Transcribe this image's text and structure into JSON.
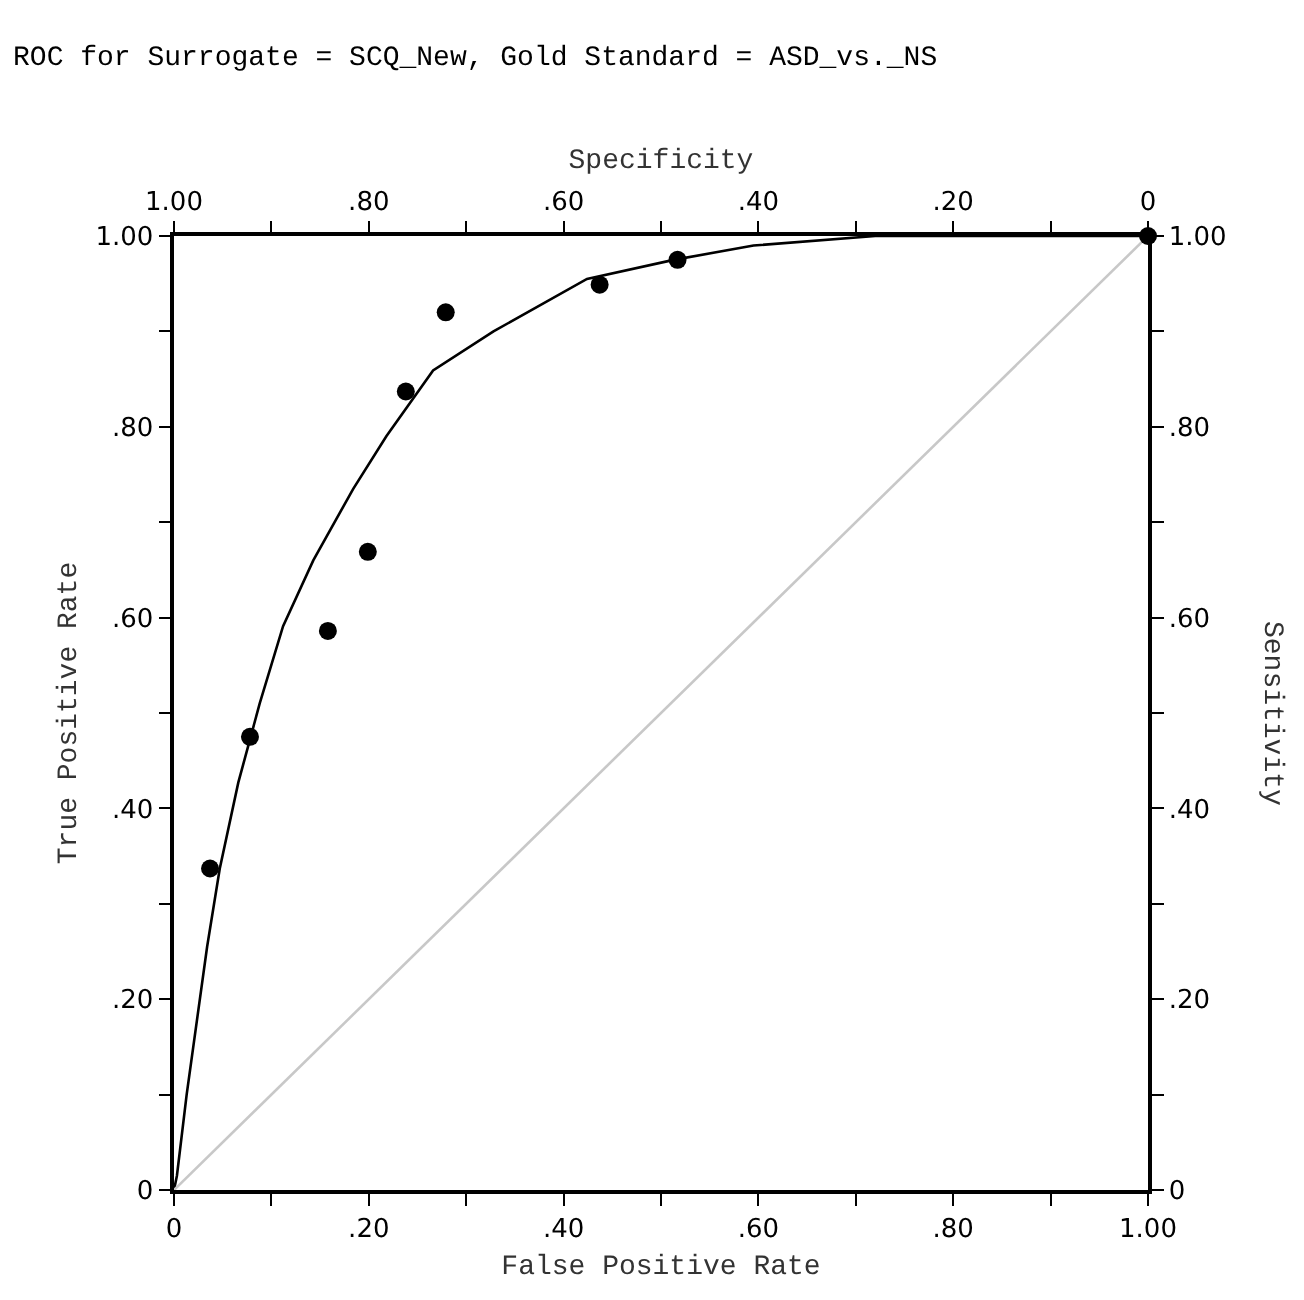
{
  "chart_data": {
    "type": "scatter",
    "title": "ROC for Surrogate = SCQ_New, Gold Standard = ASD_vs._NS",
    "xlabel": "False Positive Rate",
    "ylabel": "True Positive Rate",
    "x2label": "Specificity",
    "y2label": "Sensitivity",
    "series": [
      {
        "color": "#000000",
        "marker": "circle",
        "x": [
          0.037,
          0.078,
          0.158,
          0.199,
          0.238,
          0.279,
          0.437,
          0.517,
          1.0
        ],
        "values": [
          0.337,
          0.475,
          0.586,
          0.669,
          0.837,
          0.92,
          0.949,
          0.975,
          1.0
        ]
      },
      {
        "type": "line",
        "color": "#000000",
        "line_style": "solid",
        "x": [
          0.0,
          0.003,
          0.013,
          0.034,
          0.047,
          0.066,
          0.088,
          0.112,
          0.143,
          0.184,
          0.218,
          0.266,
          0.328,
          0.424,
          0.513,
          0.595,
          0.72,
          1.0
        ],
        "values": [
          0.0,
          0.015,
          0.1,
          0.255,
          0.337,
          0.427,
          0.51,
          0.591,
          0.66,
          0.735,
          0.79,
          0.859,
          0.9,
          0.955,
          0.975,
          0.99,
          1.0,
          1.0
        ]
      },
      {
        "type": "line",
        "color": "#c8c8c8",
        "line_style": "solid",
        "x": [
          0.0,
          1.0
        ],
        "values": [
          0.0,
          1.0
        ]
      }
    ],
    "xlim": [
      0,
      1
    ],
    "ylim": [
      0,
      1
    ],
    "x2lim": [
      1,
      0
    ],
    "y2lim": [
      0,
      1
    ],
    "xticks": [
      {
        "value": 0,
        "label": "0"
      },
      {
        "value": 0.1,
        "label": null
      },
      {
        "value": 0.2,
        "label": ".20"
      },
      {
        "value": 0.3,
        "label": null
      },
      {
        "value": 0.4,
        "label": ".40"
      },
      {
        "value": 0.5,
        "label": null
      },
      {
        "value": 0.6,
        "label": ".60"
      },
      {
        "value": 0.7,
        "label": null
      },
      {
        "value": 0.8,
        "label": ".80"
      },
      {
        "value": 0.9,
        "label": null
      },
      {
        "value": 1,
        "label": "1.00"
      }
    ],
    "yticks": [
      {
        "value": 0,
        "label": "0"
      },
      {
        "value": 0.1,
        "label": null
      },
      {
        "value": 0.2,
        "label": ".20"
      },
      {
        "value": 0.3,
        "label": null
      },
      {
        "value": 0.4,
        "label": ".40"
      },
      {
        "value": 0.5,
        "label": null
      },
      {
        "value": 0.6,
        "label": ".60"
      },
      {
        "value": 0.7,
        "label": null
      },
      {
        "value": 0.8,
        "label": ".80"
      },
      {
        "value": 0.9,
        "label": null
      },
      {
        "value": 1,
        "label": "1.00"
      }
    ],
    "x2ticks": [
      {
        "value": 1,
        "label": "1.00"
      },
      {
        "value": 0.9,
        "label": null
      },
      {
        "value": 0.8,
        "label": ".80"
      },
      {
        "value": 0.7,
        "label": null
      },
      {
        "value": 0.6,
        "label": ".60"
      },
      {
        "value": 0.5,
        "label": null
      },
      {
        "value": 0.4,
        "label": ".40"
      },
      {
        "value": 0.3,
        "label": null
      },
      {
        "value": 0.2,
        "label": ".20"
      },
      {
        "value": 0.1,
        "label": null
      },
      {
        "value": 0,
        "label": "0"
      }
    ],
    "y2ticks": [
      {
        "value": 0,
        "label": "0"
      },
      {
        "value": 0.1,
        "label": null
      },
      {
        "value": 0.2,
        "label": ".20"
      },
      {
        "value": 0.3,
        "label": null
      },
      {
        "value": 0.4,
        "label": ".40"
      },
      {
        "value": 0.5,
        "label": null
      },
      {
        "value": 0.6,
        "label": ".60"
      },
      {
        "value": 0.7,
        "label": null
      },
      {
        "value": 0.8,
        "label": ".80"
      },
      {
        "value": 0.9,
        "label": null
      },
      {
        "value": 1,
        "label": "1.00"
      }
    ],
    "tick_labels": true
  }
}
